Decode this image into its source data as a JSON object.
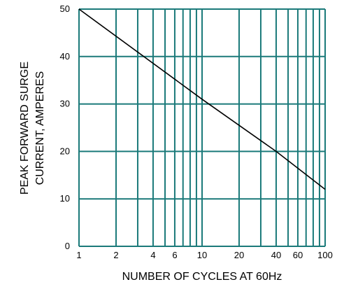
{
  "chart_data": {
    "type": "line",
    "xscale": "log",
    "xlim": [
      1,
      100
    ],
    "ylim": [
      0,
      50
    ],
    "grid": true,
    "x_ticks": [
      1,
      2,
      4,
      6,
      10,
      20,
      40,
      60,
      100
    ],
    "x_tick_labels": [
      "1",
      "2",
      "4",
      "6",
      "10",
      "20",
      "40",
      "60",
      "100"
    ],
    "y_ticks": [
      0,
      10,
      20,
      30,
      40,
      50
    ],
    "y_tick_labels": [
      "0",
      "10",
      "20",
      "30",
      "40",
      "50"
    ],
    "xlabel": "NUMBER OF CYCLES AT 60Hz",
    "ylabel_lines": [
      "PEAK FORWARD SURGE",
      "CURRENT, AMPERES"
    ],
    "series": [
      {
        "x": [
          1,
          10,
          40,
          100
        ],
        "y": [
          50,
          31,
          20,
          12
        ]
      }
    ],
    "colors": {
      "grid": "#1b7a7a",
      "line": "#000000"
    }
  }
}
